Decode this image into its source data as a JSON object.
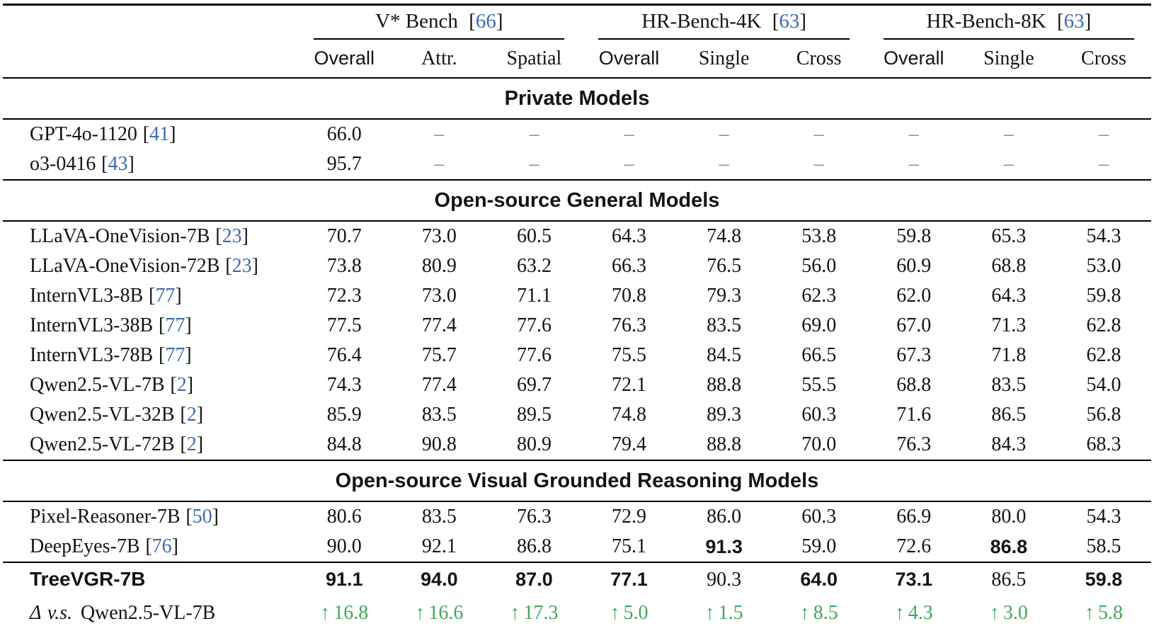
{
  "punct": {
    "open": "[",
    "close": "]"
  },
  "colors": {
    "citation_blue": "#3d6bae",
    "delta_green": "#43a65a",
    "dash_gray": "#8a8a8a"
  },
  "header": {
    "groups": [
      {
        "name": "V* Bench",
        "ref": "66",
        "subcols": [
          {
            "label": "Overall",
            "bold": true
          },
          {
            "label": "Attr.",
            "bold": false
          },
          {
            "label": "Spatial",
            "bold": false
          }
        ]
      },
      {
        "name": "HR-Bench-4K",
        "ref": "63",
        "subcols": [
          {
            "label": "Overall",
            "bold": true
          },
          {
            "label": "Single",
            "bold": false
          },
          {
            "label": "Cross",
            "bold": false
          }
        ]
      },
      {
        "name": "HR-Bench-8K",
        "ref": "63",
        "subcols": [
          {
            "label": "Overall",
            "bold": true
          },
          {
            "label": "Single",
            "bold": false
          },
          {
            "label": "Cross",
            "bold": false
          }
        ]
      }
    ]
  },
  "sections": [
    {
      "title": "Private Models",
      "rows": [
        {
          "model": "GPT-4o-1120",
          "ref": "41",
          "values": [
            "66.0",
            "–",
            "–",
            "–",
            "–",
            "–",
            "–",
            "–",
            "–"
          ],
          "bold": []
        },
        {
          "model": "o3-0416",
          "ref": "43",
          "values": [
            "95.7",
            "–",
            "–",
            "–",
            "–",
            "–",
            "–",
            "–",
            "–"
          ],
          "bold": []
        }
      ]
    },
    {
      "title": "Open-source General Models",
      "rows": [
        {
          "model": "LLaVA-OneVision-7B",
          "ref": "23",
          "values": [
            "70.7",
            "73.0",
            "60.5",
            "64.3",
            "74.8",
            "53.8",
            "59.8",
            "65.3",
            "54.3"
          ],
          "bold": []
        },
        {
          "model": "LLaVA-OneVision-72B",
          "ref": "23",
          "values": [
            "73.8",
            "80.9",
            "63.2",
            "66.3",
            "76.5",
            "56.0",
            "60.9",
            "68.8",
            "53.0"
          ],
          "bold": []
        },
        {
          "model": "InternVL3-8B",
          "ref": "77",
          "values": [
            "72.3",
            "73.0",
            "71.1",
            "70.8",
            "79.3",
            "62.3",
            "62.0",
            "64.3",
            "59.8"
          ],
          "bold": []
        },
        {
          "model": "InternVL3-38B",
          "ref": "77",
          "values": [
            "77.5",
            "77.4",
            "77.6",
            "76.3",
            "83.5",
            "69.0",
            "67.0",
            "71.3",
            "62.8"
          ],
          "bold": []
        },
        {
          "model": "InternVL3-78B",
          "ref": "77",
          "values": [
            "76.4",
            "75.7",
            "77.6",
            "75.5",
            "84.5",
            "66.5",
            "67.3",
            "71.8",
            "62.8"
          ],
          "bold": []
        },
        {
          "model": "Qwen2.5-VL-7B",
          "ref": "2",
          "values": [
            "74.3",
            "77.4",
            "69.7",
            "72.1",
            "88.8",
            "55.5",
            "68.8",
            "83.5",
            "54.0"
          ],
          "bold": []
        },
        {
          "model": "Qwen2.5-VL-32B",
          "ref": "2",
          "values": [
            "85.9",
            "83.5",
            "89.5",
            "74.8",
            "89.3",
            "60.3",
            "71.6",
            "86.5",
            "56.8"
          ],
          "bold": []
        },
        {
          "model": "Qwen2.5-VL-72B",
          "ref": "2",
          "values": [
            "84.8",
            "90.8",
            "80.9",
            "79.4",
            "88.8",
            "70.0",
            "76.3",
            "84.3",
            "68.3"
          ],
          "bold": []
        }
      ]
    },
    {
      "title": "Open-source Visual Grounded Reasoning Models",
      "rows": [
        {
          "model": "Pixel-Reasoner-7B",
          "ref": "50",
          "values": [
            "80.6",
            "83.5",
            "76.3",
            "72.9",
            "86.0",
            "60.3",
            "66.9",
            "80.0",
            "54.3"
          ],
          "bold": []
        },
        {
          "model": "DeepEyes-7B",
          "ref": "76",
          "values": [
            "90.0",
            "92.1",
            "86.8",
            "75.1",
            "91.3",
            "59.0",
            "72.6",
            "86.8",
            "58.5"
          ],
          "bold": [
            4,
            7
          ]
        }
      ]
    }
  ],
  "summary": {
    "final": {
      "model": "TreeVGR-7B",
      "values": [
        "91.1",
        "94.0",
        "87.0",
        "77.1",
        "90.3",
        "64.0",
        "73.1",
        "86.5",
        "59.8"
      ],
      "bold": [
        0,
        1,
        2,
        3,
        5,
        6,
        8
      ]
    },
    "delta": {
      "symbol": "Δ",
      "vs": "v.s.",
      "baseline": "Qwen2.5-VL-7B",
      "arrow": "↑",
      "values": [
        "16.8",
        "16.6",
        "17.3",
        "5.0",
        "1.5",
        "8.5",
        "4.3",
        "3.0",
        "5.8"
      ]
    }
  }
}
